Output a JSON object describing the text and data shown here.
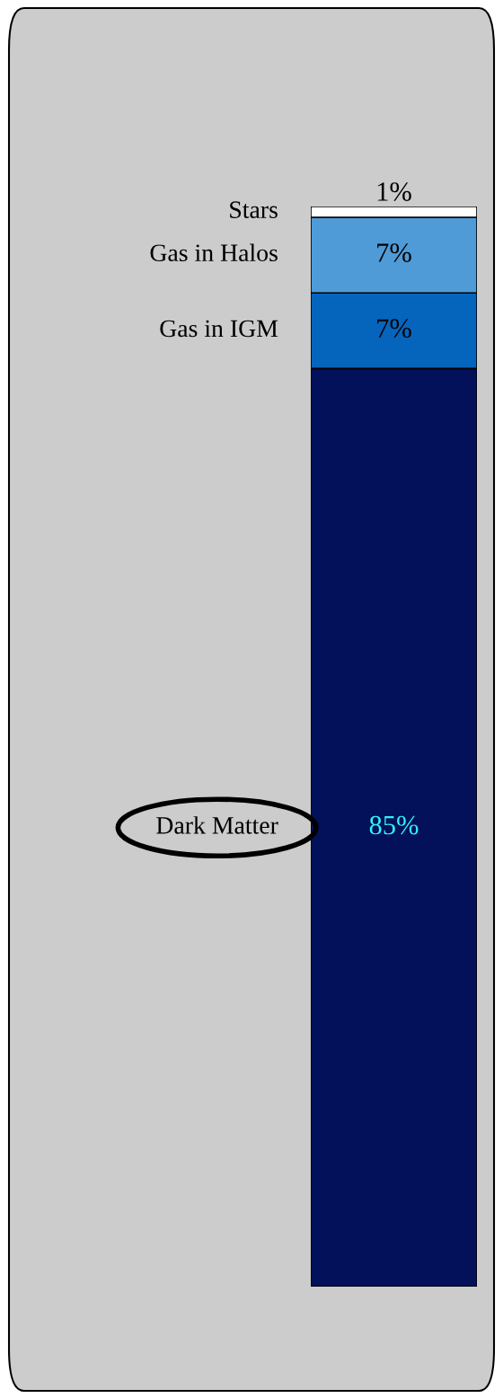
{
  "chart_data": {
    "type": "bar",
    "stacked": true,
    "categories": [
      null
    ],
    "tick_labels": false,
    "series": [
      {
        "name": "Dark Matter",
        "color": "#02115a",
        "values": [
          85
        ],
        "value_labels": [
          "85%"
        ]
      },
      {
        "name": "Gas in IGM",
        "color": "#0565bd",
        "values": [
          7
        ],
        "value_labels": [
          "7%"
        ]
      },
      {
        "name": "Gas in Halos",
        "color": "#4f9bd7",
        "values": [
          7
        ],
        "value_labels": [
          "7%"
        ]
      },
      {
        "name": "Stars",
        "color": "#ffffff",
        "values": [
          1
        ],
        "value_labels": [
          "1%"
        ]
      }
    ]
  }
}
